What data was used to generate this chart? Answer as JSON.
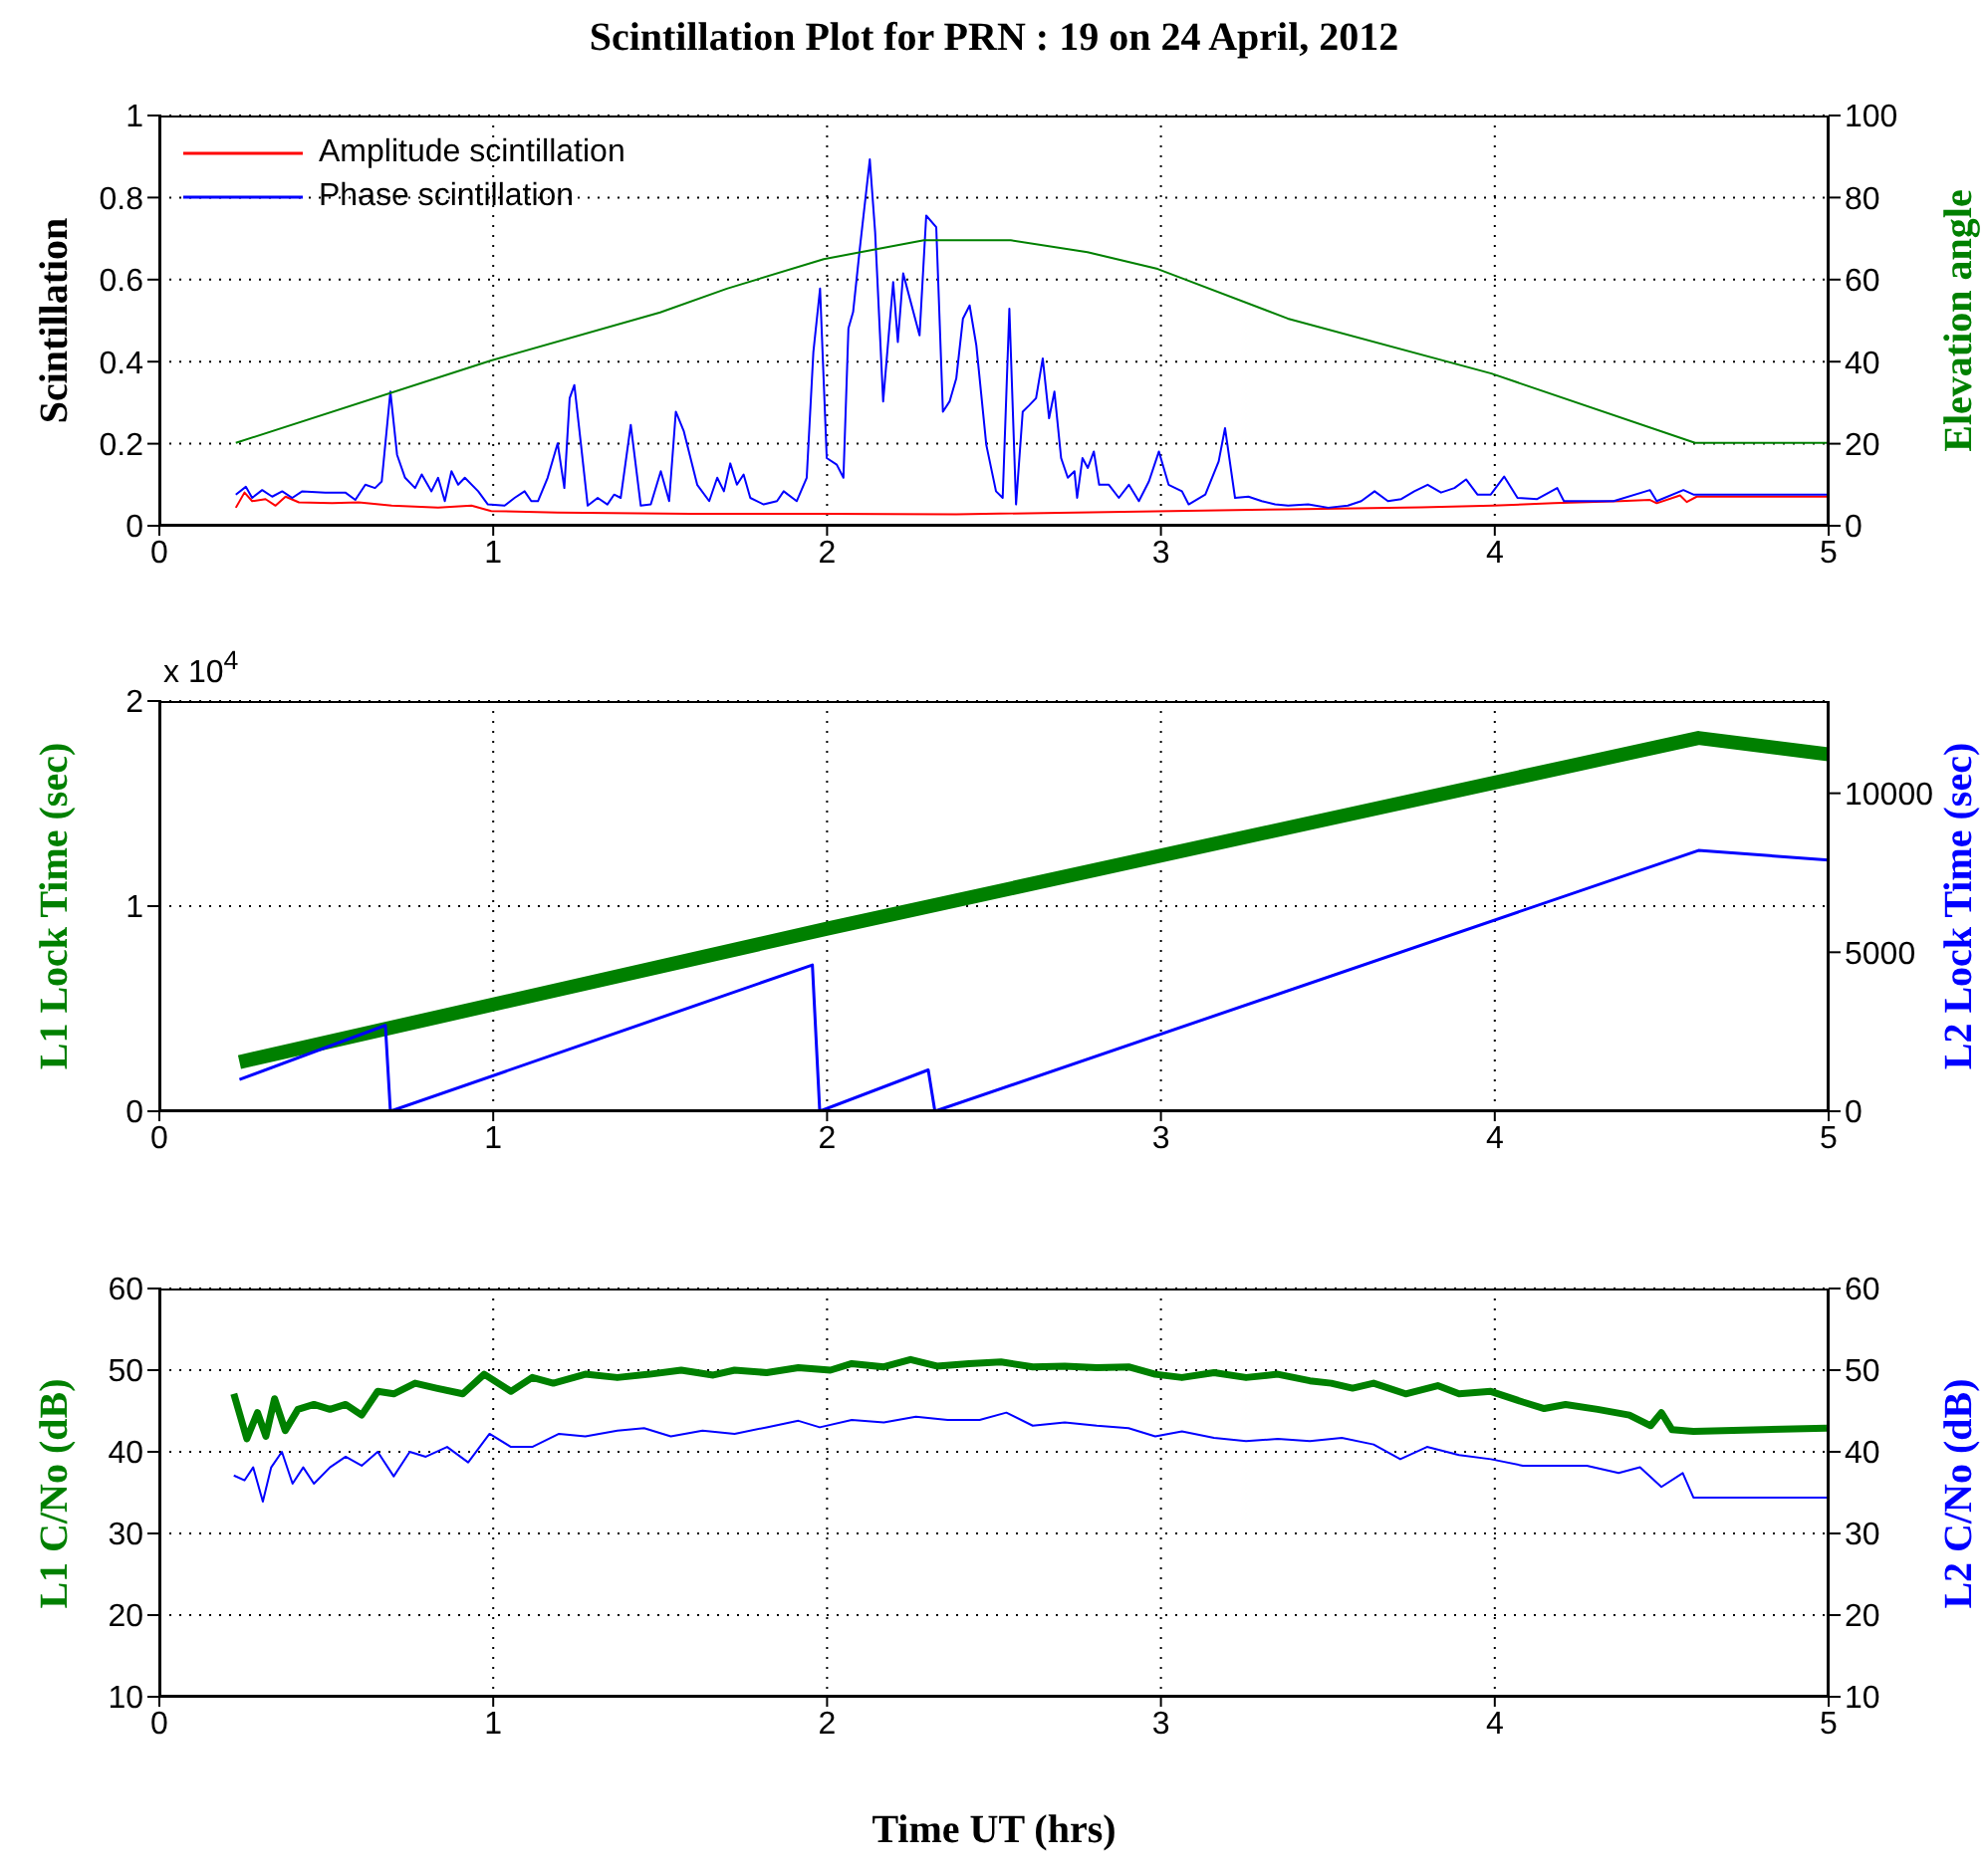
{
  "chart_data": [
    {
      "type": "line",
      "title": "Scintillation Plot for PRN : 19 on 24 April, 2012",
      "ylabel": "Scintillation",
      "y2label": "Elevation angle",
      "xlim": [
        0,
        5
      ],
      "xticks": [
        0,
        1,
        2,
        3,
        4,
        5
      ],
      "ylim": [
        0,
        1
      ],
      "yticks": [
        0,
        0.2,
        0.4,
        0.6,
        0.8,
        1
      ],
      "y2lim": [
        0,
        100
      ],
      "y2ticks": [
        0,
        20,
        40,
        60,
        80,
        100
      ],
      "grid": true,
      "legend": "top left",
      "series": [
        {
          "name": "Amplitude scintillation",
          "color": "#ff0000",
          "x": [
            0.229,
            0.255,
            0.278,
            0.318,
            0.348,
            0.378,
            0.418,
            0.517,
            0.597,
            0.696,
            0.835,
            0.935,
            0.994,
            1.193,
            1.591,
            1.989,
            2.387,
            3.381,
            3.779,
            3.994,
            4.177,
            4.376,
            4.465,
            4.485,
            4.555,
            4.575,
            4.605,
            5
          ],
          "values": [
            0.044,
            0.081,
            0.06,
            0.065,
            0.049,
            0.071,
            0.057,
            0.055,
            0.057,
            0.049,
            0.044,
            0.049,
            0.036,
            0.032,
            0.029,
            0.029,
            0.028,
            0.04,
            0.045,
            0.049,
            0.055,
            0.06,
            0.063,
            0.055,
            0.074,
            0.058,
            0.071,
            0.071
          ]
        },
        {
          "name": "Phase scintillation",
          "color": "#0000ff",
          "x": [
            0.229,
            0.259,
            0.278,
            0.308,
            0.338,
            0.368,
            0.398,
            0.428,
            0.497,
            0.557,
            0.587,
            0.617,
            0.646,
            0.666,
            0.692,
            0.712,
            0.736,
            0.766,
            0.786,
            0.815,
            0.835,
            0.855,
            0.875,
            0.895,
            0.915,
            0.955,
            0.984,
            1.034,
            1.064,
            1.094,
            1.114,
            1.134,
            1.163,
            1.193,
            1.213,
            1.229,
            1.243,
            1.263,
            1.283,
            1.313,
            1.342,
            1.362,
            1.382,
            1.412,
            1.442,
            1.472,
            1.502,
            1.527,
            1.547,
            1.571,
            1.591,
            1.611,
            1.647,
            1.671,
            1.691,
            1.71,
            1.73,
            1.75,
            1.77,
            1.81,
            1.85,
            1.87,
            1.909,
            1.939,
            1.959,
            1.979,
            1.999,
            2.029,
            2.049,
            2.064,
            2.078,
            2.098,
            2.128,
            2.144,
            2.168,
            2.198,
            2.212,
            2.228,
            2.277,
            2.297,
            2.327,
            2.347,
            2.367,
            2.387,
            2.407,
            2.427,
            2.447,
            2.477,
            2.506,
            2.526,
            2.546,
            2.566,
            2.586,
            2.606,
            2.626,
            2.646,
            2.665,
            2.681,
            2.701,
            2.721,
            2.741,
            2.749,
            2.765,
            2.781,
            2.799,
            2.815,
            2.844,
            2.874,
            2.904,
            2.934,
            2.964,
            2.994,
            3.023,
            3.063,
            3.083,
            3.133,
            3.173,
            3.192,
            3.222,
            3.262,
            3.302,
            3.342,
            3.381,
            3.441,
            3.501,
            3.56,
            3.6,
            3.64,
            3.68,
            3.72,
            3.759,
            3.799,
            3.839,
            3.879,
            3.914,
            3.948,
            3.988,
            4.028,
            4.068,
            4.127,
            4.187,
            4.207,
            4.276,
            4.356,
            4.465,
            4.485,
            4.565,
            4.595,
            5
          ],
          "values": [
            0.076,
            0.095,
            0.068,
            0.087,
            0.071,
            0.084,
            0.068,
            0.084,
            0.081,
            0.081,
            0.063,
            0.1,
            0.092,
            0.108,
            0.327,
            0.173,
            0.117,
            0.092,
            0.125,
            0.084,
            0.117,
            0.06,
            0.133,
            0.1,
            0.117,
            0.084,
            0.052,
            0.049,
            0.068,
            0.084,
            0.06,
            0.06,
            0.117,
            0.201,
            0.092,
            0.311,
            0.343,
            0.197,
            0.049,
            0.068,
            0.052,
            0.076,
            0.068,
            0.246,
            0.049,
            0.052,
            0.133,
            0.06,
            0.278,
            0.23,
            0.165,
            0.1,
            0.06,
            0.117,
            0.084,
            0.152,
            0.1,
            0.125,
            0.068,
            0.052,
            0.06,
            0.084,
            0.06,
            0.117,
            0.424,
            0.578,
            0.165,
            0.149,
            0.117,
            0.481,
            0.521,
            0.675,
            0.893,
            0.715,
            0.303,
            0.594,
            0.448,
            0.615,
            0.464,
            0.756,
            0.728,
            0.278,
            0.303,
            0.359,
            0.505,
            0.537,
            0.44,
            0.197,
            0.084,
            0.068,
            0.529,
            0.052,
            0.278,
            0.294,
            0.311,
            0.408,
            0.262,
            0.327,
            0.165,
            0.117,
            0.133,
            0.068,
            0.165,
            0.141,
            0.181,
            0.1,
            0.1,
            0.068,
            0.1,
            0.06,
            0.108,
            0.181,
            0.1,
            0.084,
            0.052,
            0.076,
            0.157,
            0.238,
            0.068,
            0.071,
            0.06,
            0.052,
            0.049,
            0.052,
            0.044,
            0.049,
            0.06,
            0.084,
            0.06,
            0.065,
            0.084,
            0.1,
            0.081,
            0.092,
            0.113,
            0.076,
            0.076,
            0.12,
            0.068,
            0.065,
            0.092,
            0.06,
            0.06,
            0.06,
            0.087,
            0.06,
            0.087,
            0.076,
            0.076
          ]
        },
        {
          "color": "#008000",
          "axis": "y2",
          "x": [
            0.229,
            0.994,
            1.5,
            1.7,
            1.99,
            2.29,
            2.387,
            2.55,
            2.78,
            2.99,
            3.38,
            3.99,
            4.6,
            5
          ],
          "values": [
            20.2,
            40.3,
            52,
            57.8,
            65,
            69.6,
            69.6,
            69.6,
            66.7,
            62.6,
            50.5,
            37.1,
            20.2,
            20.2
          ]
        }
      ]
    },
    {
      "type": "line",
      "ylabel": "L1 Lock Time (sec)",
      "y2label": "L2 Lock Time (sec)",
      "annotations": [
        "x 10$^{4}$"
      ],
      "xlim": [
        0,
        5
      ],
      "xticks": [
        0,
        1,
        2,
        3,
        4,
        5
      ],
      "ylim": [
        0,
        2
      ],
      "yticks": [
        0,
        1,
        2
      ],
      "y2lim": [
        0,
        12900
      ],
      "y2ticks": [
        0,
        5000,
        10000
      ],
      "grid": true,
      "series": [
        {
          "color": "#008000",
          "x": [
            0.24,
            2,
            4.61,
            5
          ],
          "values": [
            0.24,
            0.89,
            1.82,
            1.74
          ]
        },
        {
          "color": "#0000ff",
          "axis": "y2",
          "x": [
            0.24,
            0.677,
            0.692,
            1.956,
            1.978,
            2.303,
            2.323,
            4.61,
            5
          ],
          "values": [
            1000,
            2700,
            0,
            4600,
            0,
            1300,
            0,
            8200,
            7900
          ]
        }
      ]
    },
    {
      "type": "line",
      "xlabel": "Time UT (hrs)",
      "ylabel": "L1 C/No (dB)",
      "y2label": "L2 C/No (dB)",
      "xlim": [
        0,
        5
      ],
      "xticks": [
        0,
        1,
        2,
        3,
        4,
        5
      ],
      "ylim": [
        10,
        60
      ],
      "yticks": [
        10,
        20,
        30,
        40,
        50,
        60
      ],
      "y2lim": [
        10,
        60
      ],
      "y2ticks": [
        10,
        20,
        30,
        40,
        50,
        60
      ],
      "grid": true,
      "series": [
        {
          "color": "#008000",
          "x": [
            0.223,
            0.262,
            0.294,
            0.319,
            0.345,
            0.377,
            0.415,
            0.463,
            0.511,
            0.558,
            0.606,
            0.654,
            0.702,
            0.766,
            0.83,
            0.909,
            0.973,
            1.053,
            1.117,
            1.18,
            1.276,
            1.372,
            1.468,
            1.563,
            1.659,
            1.723,
            1.819,
            1.914,
            2.01,
            2.074,
            2.17,
            2.25,
            2.329,
            2.425,
            2.521,
            2.616,
            2.712,
            2.808,
            2.903,
            2.983,
            3.063,
            3.159,
            3.255,
            3.35,
            3.446,
            3.51,
            3.574,
            3.637,
            3.733,
            3.829,
            3.893,
            3.988,
            4.084,
            4.148,
            4.212,
            4.308,
            4.403,
            4.467,
            4.499,
            4.531,
            4.595,
            4.994
          ],
          "values": [
            47.1,
            41.6,
            44.8,
            41.9,
            46.5,
            42.6,
            45.2,
            45.8,
            45.2,
            45.8,
            44.5,
            47.4,
            47.1,
            48.4,
            47.8,
            47.1,
            49.5,
            47.4,
            49.1,
            48.4,
            49.5,
            49.1,
            49.5,
            50,
            49.4,
            50,
            49.7,
            50.3,
            50,
            50.8,
            50.4,
            51.3,
            50.5,
            50.8,
            51,
            50.4,
            50.5,
            50.3,
            50.4,
            49.5,
            49.1,
            49.7,
            49.1,
            49.5,
            48.7,
            48.4,
            47.8,
            48.4,
            47.1,
            48.1,
            47.1,
            47.4,
            46.1,
            45.3,
            45.8,
            45.2,
            44.5,
            43.2,
            44.8,
            42.7,
            42.5,
            42.9
          ]
        },
        {
          "color": "#0000ff",
          "axis": "y2",
          "x": [
            0.223,
            0.255,
            0.281,
            0.31,
            0.335,
            0.367,
            0.399,
            0.431,
            0.463,
            0.511,
            0.558,
            0.606,
            0.654,
            0.702,
            0.75,
            0.798,
            0.862,
            0.925,
            0.989,
            1.053,
            1.117,
            1.197,
            1.276,
            1.372,
            1.452,
            1.532,
            1.627,
            1.723,
            1.819,
            1.914,
            1.978,
            2.074,
            2.17,
            2.266,
            2.361,
            2.457,
            2.537,
            2.616,
            2.712,
            2.808,
            2.903,
            2.983,
            3.063,
            3.159,
            3.255,
            3.35,
            3.446,
            3.542,
            3.637,
            3.717,
            3.797,
            3.893,
            3.988,
            4.084,
            4.18,
            4.276,
            4.371,
            4.435,
            4.499,
            4.563,
            4.595,
            4.994
          ],
          "values": [
            37.1,
            36.5,
            38.1,
            33.9,
            38.1,
            40,
            36.1,
            38.1,
            36.1,
            38.1,
            39.4,
            38.3,
            40,
            37,
            40,
            39.4,
            40.6,
            38.7,
            42.2,
            40.6,
            40.6,
            42.2,
            41.9,
            42.6,
            42.9,
            41.9,
            42.6,
            42.2,
            43,
            43.8,
            43,
            43.9,
            43.6,
            44.3,
            43.9,
            43.9,
            44.8,
            43.2,
            43.6,
            43.2,
            42.9,
            41.9,
            42.5,
            41.7,
            41.3,
            41.6,
            41.3,
            41.7,
            40.9,
            39.1,
            40.6,
            39.6,
            39.1,
            38.3,
            38.3,
            38.3,
            37.4,
            38.1,
            35.7,
            37.4,
            34.4,
            34.4
          ]
        }
      ]
    }
  ]
}
